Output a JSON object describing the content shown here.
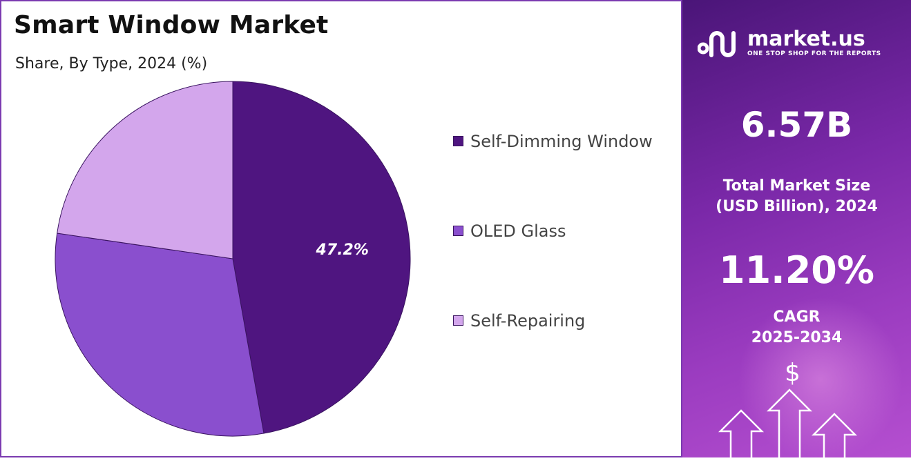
{
  "title": "Smart Window Market",
  "subtitle": "Share, By Type, 2024 (%)",
  "chart_data": {
    "type": "pie",
    "title": "Smart Window Market",
    "subtitle": "Share, By Type, 2024 (%)",
    "categories": [
      "Self-Dimming Window",
      "OLED Glass",
      "Self-Repairing"
    ],
    "values": [
      47.2,
      30.1,
      22.7
    ],
    "colors": [
      "#4f1580",
      "#8a4fce",
      "#d3a6ec"
    ],
    "data_labels": [
      "47.2%",
      "",
      ""
    ],
    "legend_position": "right"
  },
  "sidebar": {
    "brand_name": "market.us",
    "brand_tagline": "ONE STOP SHOP FOR THE REPORTS",
    "market_size_value": "6.57B",
    "market_size_label_line1": "Total Market Size",
    "market_size_label_line2": "(USD Billion), 2024",
    "cagr_value": "11.20%",
    "cagr_label_line1": "CAGR",
    "cagr_label_line2": "2025-2034",
    "dollar_symbol": "$",
    "background_color": "#7a28a8"
  }
}
